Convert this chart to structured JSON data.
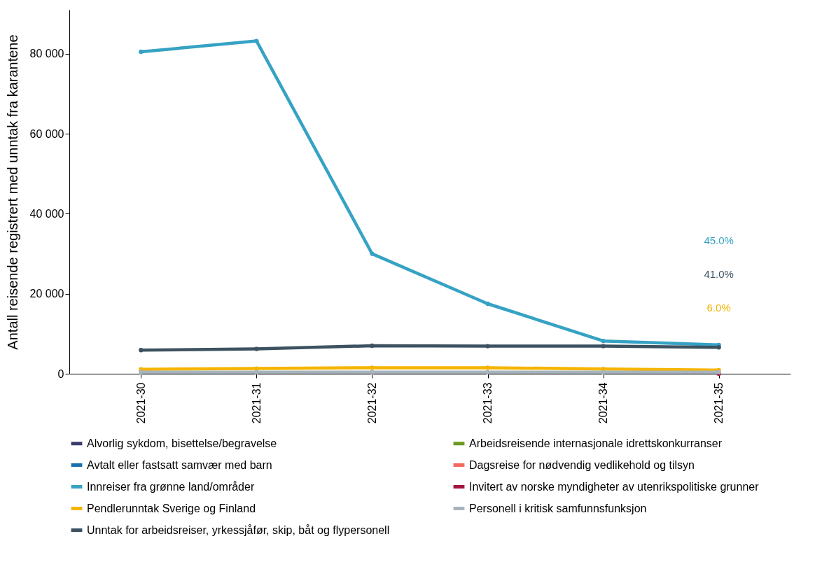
{
  "chart_data": {
    "type": "line",
    "ylabel": "Antall reisende registrert med unntak fra karantene",
    "categories": [
      "2021-30",
      "2021-31",
      "2021-32",
      "2021-33",
      "2021-34",
      "2021-35"
    ],
    "series": [
      {
        "name": "Alvorlig sykdom, bisettelse/begravelse",
        "color": "#3b3b6b",
        "values": [
          null,
          null,
          null,
          null,
          null,
          null
        ]
      },
      {
        "name": "Arbeidsreisende internasjonale idrettskonkurranser",
        "color": "#6a9a1f",
        "values": [
          null,
          null,
          null,
          null,
          null,
          null
        ]
      },
      {
        "name": "Avtalt eller fastsatt samvær med barn",
        "color": "#1a6fae",
        "values": [
          null,
          null,
          null,
          null,
          null,
          null
        ]
      },
      {
        "name": "Dagsreise for nødvendig vedlikehold og tilsyn",
        "color": "#f4695b",
        "values": [
          null,
          null,
          null,
          null,
          null,
          null
        ]
      },
      {
        "name": "Innreiser fra grønne land/områder",
        "color": "#36a2c4",
        "values": [
          80500,
          83200,
          30000,
          17500,
          8200,
          7200
        ]
      },
      {
        "name": "Invitert av norske myndigheter av utenrikspolitiske grunner",
        "color": "#a5143f",
        "values": [
          null,
          null,
          null,
          null,
          null,
          0
        ]
      },
      {
        "name": "Pendlerunntak Sverige og Finland",
        "color": "#f5b400",
        "values": [
          1100,
          1300,
          1500,
          1500,
          1200,
          900
        ]
      },
      {
        "name": "Personell i kritisk samfunnsfunksjon",
        "color": "#a7b4bd",
        "values": [
          400,
          400,
          400,
          400,
          400,
          400
        ]
      },
      {
        "name": "Unntak for arbeidsreiser, yrkessjåfør, skip, båt og flypersonell",
        "color": "#3d5260",
        "values": [
          5900,
          6200,
          7000,
          6900,
          6900,
          6600
        ]
      }
    ],
    "ylim": [
      0,
      91000
    ],
    "yticks": [
      0,
      {
        "value": 20000,
        "label": "20 000"
      },
      {
        "value": 40000,
        "label": "40 000"
      },
      {
        "value": 60000,
        "label": "60 000"
      },
      {
        "value": 80000,
        "label": "80 000"
      }
    ],
    "annotations": [
      "45.0%",
      "41.0%",
      "6.0%"
    ],
    "grid": false,
    "legend": "bottom",
    "marker": "circle",
    "line_style": "solid"
  }
}
